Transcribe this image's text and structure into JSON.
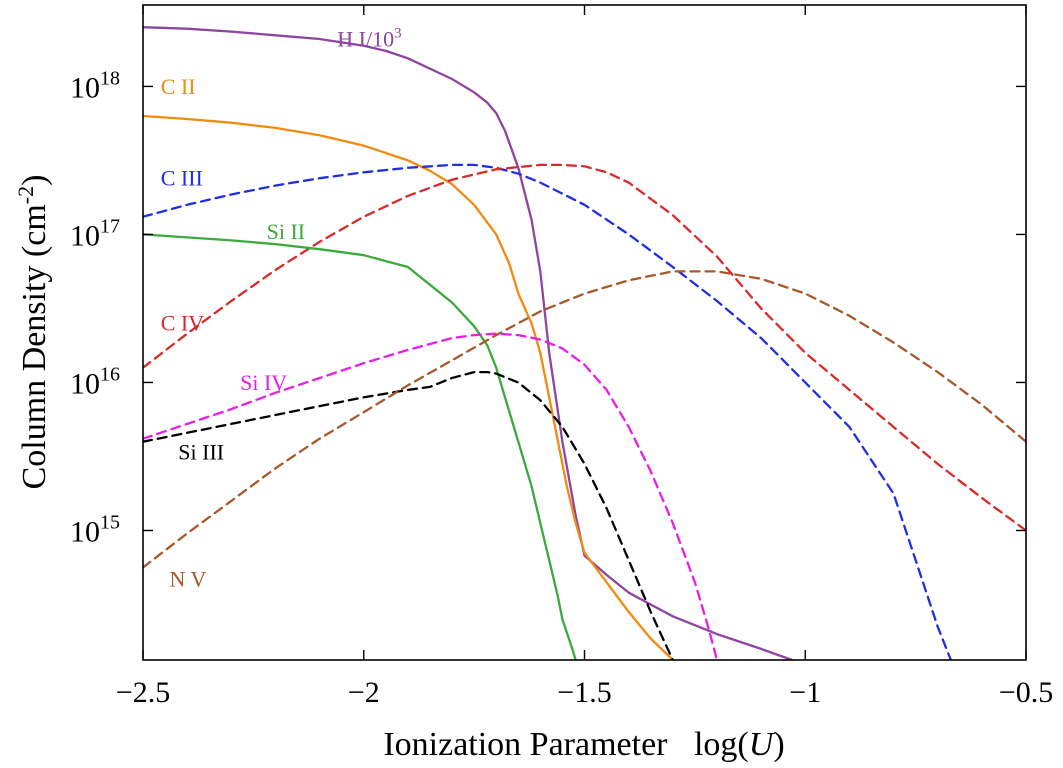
{
  "chart_data": {
    "type": "line",
    "xlabel": "Ionization Parameter",
    "xlabel_math": "log(",
    "xlabel_var": "U",
    "xlabel_close": ")",
    "ylabel": "Column Density (cm",
    "ylabel_sup": "-2",
    "ylabel_close": ")",
    "xlim": [
      -2.5,
      -0.5
    ],
    "ylim_log10": [
      14.125,
      18.55
    ],
    "y_scale": "log",
    "x_ticks": [
      {
        "value": -2.5,
        "label": "−2.5"
      },
      {
        "value": -2.0,
        "label": "−2"
      },
      {
        "value": -1.5,
        "label": "−1.5"
      },
      {
        "value": -1.0,
        "label": "−1"
      },
      {
        "value": -0.5,
        "label": "−0.5"
      }
    ],
    "y_ticks": [
      {
        "log10": 15,
        "base": "10",
        "exp": "15"
      },
      {
        "log10": 16,
        "base": "10",
        "exp": "16"
      },
      {
        "log10": 17,
        "base": "10",
        "exp": "17"
      },
      {
        "log10": 18,
        "base": "10",
        "exp": "18"
      }
    ],
    "series": [
      {
        "name": "H I/10",
        "name_sup": "3",
        "color": "#8e44a0",
        "dash": false,
        "label_x": -2.06,
        "label_y_log10": 18.27,
        "x": [
          -2.5,
          -2.4,
          -2.3,
          -2.2,
          -2.1,
          -2.0,
          -1.95,
          -1.9,
          -1.8,
          -1.75,
          -1.72,
          -1.7,
          -1.68,
          -1.65,
          -1.62,
          -1.6,
          -1.58,
          -1.55,
          -1.52,
          -1.5,
          -1.45,
          -1.4,
          -1.35,
          -1.3,
          -1.2,
          -1.1,
          -1.03
        ],
        "y_log10": [
          18.4,
          18.39,
          18.37,
          18.345,
          18.32,
          18.275,
          18.24,
          18.19,
          18.05,
          17.96,
          17.89,
          17.82,
          17.7,
          17.45,
          17.1,
          16.75,
          16.2,
          15.6,
          15.1,
          14.83,
          14.7,
          14.58,
          14.5,
          14.42,
          14.3,
          14.2,
          14.125
        ]
      },
      {
        "name": "C II",
        "name_sup": "",
        "color": "#f28a10",
        "dash": false,
        "label_x": -2.46,
        "label_y_log10": 17.95,
        "x": [
          -2.5,
          -2.4,
          -2.3,
          -2.2,
          -2.1,
          -2.0,
          -1.9,
          -1.85,
          -1.8,
          -1.75,
          -1.7,
          -1.67,
          -1.65,
          -1.62,
          -1.6,
          -1.58,
          -1.56,
          -1.54,
          -1.52,
          -1.5,
          -1.45,
          -1.4,
          -1.35,
          -1.3
        ],
        "y_log10": [
          17.8,
          17.78,
          17.755,
          17.72,
          17.67,
          17.6,
          17.5,
          17.43,
          17.34,
          17.2,
          17.0,
          16.8,
          16.6,
          16.4,
          16.2,
          15.9,
          15.6,
          15.3,
          15.05,
          14.85,
          14.65,
          14.45,
          14.27,
          14.125
        ]
      },
      {
        "name": "C III",
        "name_sup": "",
        "color": "#1f2fe0",
        "dash": true,
        "label_x": -2.46,
        "label_y_log10": 17.33,
        "x": [
          -2.5,
          -2.4,
          -2.3,
          -2.2,
          -2.1,
          -2.0,
          -1.9,
          -1.8,
          -1.75,
          -1.7,
          -1.65,
          -1.6,
          -1.5,
          -1.4,
          -1.3,
          -1.2,
          -1.1,
          -1.0,
          -0.9,
          -0.8,
          -0.7,
          -0.67
        ],
        "y_log10": [
          17.12,
          17.2,
          17.27,
          17.33,
          17.38,
          17.42,
          17.45,
          17.47,
          17.47,
          17.45,
          17.41,
          17.35,
          17.2,
          17.0,
          16.78,
          16.55,
          16.3,
          16.0,
          15.7,
          15.25,
          14.35,
          14.125
        ]
      },
      {
        "name": "C IV",
        "name_sup": "",
        "color": "#d92a2a",
        "dash": true,
        "label_x": -2.46,
        "label_y_log10": 16.35,
        "x": [
          -2.5,
          -2.4,
          -2.3,
          -2.2,
          -2.1,
          -2.0,
          -1.9,
          -1.8,
          -1.7,
          -1.6,
          -1.55,
          -1.5,
          -1.45,
          -1.4,
          -1.3,
          -1.2,
          -1.1,
          -1.0,
          -0.9,
          -0.8,
          -0.7,
          -0.6,
          -0.5
        ],
        "y_log10": [
          16.1,
          16.33,
          16.55,
          16.76,
          16.95,
          17.12,
          17.26,
          17.37,
          17.44,
          17.47,
          17.47,
          17.46,
          17.42,
          17.35,
          17.13,
          16.85,
          16.5,
          16.2,
          15.95,
          15.7,
          15.45,
          15.22,
          15.0
        ]
      },
      {
        "name": "Si II",
        "name_sup": "",
        "color": "#3aaa3a",
        "dash": false,
        "label_x": -2.22,
        "label_y_log10": 16.97,
        "x": [
          -2.5,
          -2.4,
          -2.3,
          -2.2,
          -2.1,
          -2.0,
          -1.9,
          -1.85,
          -1.8,
          -1.75,
          -1.72,
          -1.7,
          -1.68,
          -1.65,
          -1.62,
          -1.6,
          -1.58,
          -1.56,
          -1.55,
          -1.53,
          -1.52
        ],
        "y_log10": [
          17.0,
          16.98,
          16.96,
          16.935,
          16.9,
          16.86,
          16.78,
          16.66,
          16.54,
          16.38,
          16.25,
          16.1,
          15.9,
          15.6,
          15.3,
          15.05,
          14.8,
          14.55,
          14.4,
          14.22,
          14.125
        ]
      },
      {
        "name": "Si IV",
        "name_sup": "",
        "color": "#e81ee8",
        "dash": true,
        "label_x": -2.28,
        "label_y_log10": 15.95,
        "x": [
          -2.5,
          -2.4,
          -2.3,
          -2.2,
          -2.1,
          -2.0,
          -1.9,
          -1.8,
          -1.75,
          -1.7,
          -1.65,
          -1.6,
          -1.55,
          -1.5,
          -1.45,
          -1.4,
          -1.35,
          -1.3,
          -1.25,
          -1.22,
          -1.2
        ],
        "y_log10": [
          15.62,
          15.72,
          15.82,
          15.93,
          16.03,
          16.13,
          16.22,
          16.3,
          16.32,
          16.33,
          16.32,
          16.29,
          16.23,
          16.12,
          15.95,
          15.7,
          15.4,
          15.05,
          14.65,
          14.35,
          14.125
        ]
      },
      {
        "name": "Si III",
        "name_sup": "",
        "color": "#000000",
        "dash": true,
        "label_x": -2.42,
        "label_y_log10": 15.48,
        "x": [
          -2.5,
          -2.4,
          -2.3,
          -2.2,
          -2.1,
          -2.0,
          -1.9,
          -1.85,
          -1.8,
          -1.75,
          -1.72,
          -1.7,
          -1.65,
          -1.6,
          -1.55,
          -1.5,
          -1.45,
          -1.4,
          -1.35,
          -1.3
        ],
        "y_log10": [
          15.6,
          15.66,
          15.72,
          15.78,
          15.84,
          15.9,
          15.95,
          15.97,
          16.03,
          16.07,
          16.07,
          16.06,
          16.0,
          15.88,
          15.7,
          15.45,
          15.15,
          14.8,
          14.45,
          14.125
        ]
      },
      {
        "name": "N V",
        "name_sup": "",
        "color": "#a8582a",
        "dash": true,
        "label_x": -2.44,
        "label_y_log10": 14.62,
        "x": [
          -2.5,
          -2.4,
          -2.3,
          -2.2,
          -2.1,
          -2.0,
          -1.9,
          -1.8,
          -1.7,
          -1.6,
          -1.5,
          -1.4,
          -1.3,
          -1.2,
          -1.1,
          -1.0,
          -0.9,
          -0.8,
          -0.7,
          -0.6,
          -0.5
        ],
        "y_log10": [
          14.75,
          14.98,
          15.2,
          15.42,
          15.62,
          15.8,
          15.98,
          16.15,
          16.32,
          16.48,
          16.6,
          16.69,
          16.75,
          16.75,
          16.7,
          16.6,
          16.45,
          16.27,
          16.07,
          15.85,
          15.6
        ]
      }
    ]
  }
}
